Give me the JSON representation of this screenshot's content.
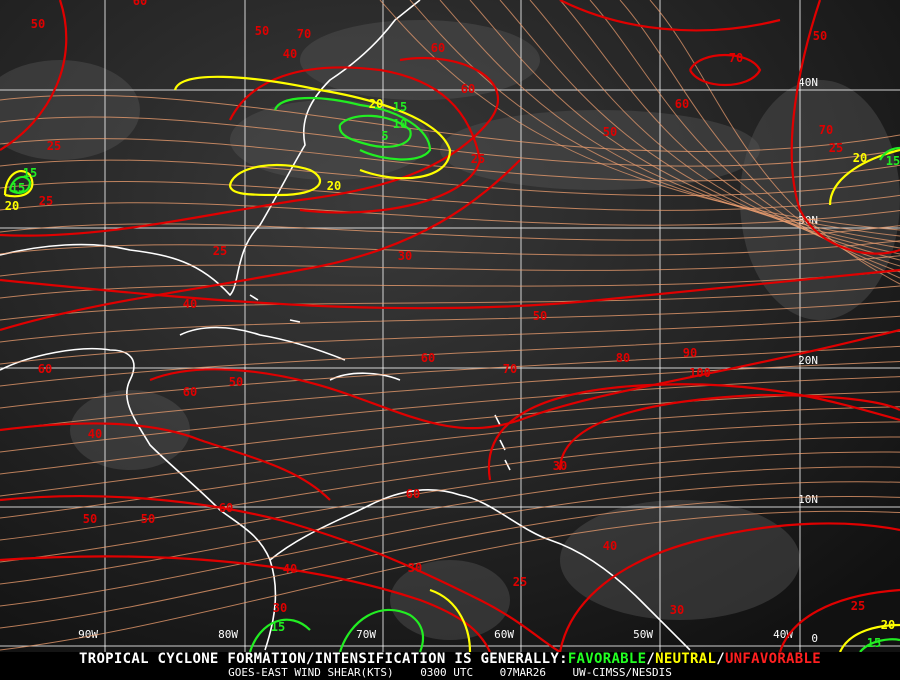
{
  "map": {
    "grid": {
      "longitudes": [
        "90W",
        "80W",
        "70W",
        "60W",
        "50W",
        "40W"
      ],
      "latitudes": [
        "40N",
        "30N",
        "20N",
        "10N",
        "0"
      ]
    },
    "contour_colors": {
      "unfavorable": "#e00000",
      "neutral": "#ffff00",
      "favorable": "#22ee22",
      "streamline": "#f0a070",
      "coast": "#ffffff"
    },
    "contour_labels": [
      {
        "v": "50",
        "c": "unfavorable"
      },
      {
        "v": "60",
        "c": "unfavorable"
      },
      {
        "v": "70",
        "c": "unfavorable"
      },
      {
        "v": "50",
        "c": "unfavorable"
      },
      {
        "v": "60",
        "c": "unfavorable"
      },
      {
        "v": "40",
        "c": "unfavorable"
      },
      {
        "v": "60",
        "c": "unfavorable"
      },
      {
        "v": "50",
        "c": "unfavorable"
      },
      {
        "v": "70",
        "c": "unfavorable"
      },
      {
        "v": "60",
        "c": "unfavorable"
      },
      {
        "v": "50",
        "c": "unfavorable"
      },
      {
        "v": "70",
        "c": "unfavorable"
      },
      {
        "v": "20",
        "c": "neutral"
      },
      {
        "v": "15",
        "c": "favorable"
      },
      {
        "v": "10",
        "c": "favorable"
      },
      {
        "v": "5",
        "c": "favorable"
      },
      {
        "v": "25",
        "c": "unfavorable"
      },
      {
        "v": "20",
        "c": "neutral"
      },
      {
        "v": "25",
        "c": "unfavorable"
      },
      {
        "v": "15",
        "c": "favorable"
      },
      {
        "v": "15",
        "c": "favorable"
      },
      {
        "v": "20",
        "c": "neutral"
      },
      {
        "v": "25",
        "c": "unfavorable"
      },
      {
        "v": "25",
        "c": "unfavorable"
      },
      {
        "v": "30",
        "c": "unfavorable"
      },
      {
        "v": "25",
        "c": "unfavorable"
      },
      {
        "v": "20",
        "c": "neutral"
      },
      {
        "v": "15",
        "c": "favorable"
      },
      {
        "v": "30",
        "c": "unfavorable"
      },
      {
        "v": "40",
        "c": "unfavorable"
      },
      {
        "v": "50",
        "c": "unfavorable"
      },
      {
        "v": "60",
        "c": "unfavorable"
      },
      {
        "v": "50",
        "c": "unfavorable"
      },
      {
        "v": "60",
        "c": "unfavorable"
      },
      {
        "v": "70",
        "c": "unfavorable"
      },
      {
        "v": "60",
        "c": "unfavorable"
      },
      {
        "v": "80",
        "c": "unfavorable"
      },
      {
        "v": "90",
        "c": "unfavorable"
      },
      {
        "v": "100",
        "c": "unfavorable"
      },
      {
        "v": "40",
        "c": "unfavorable"
      },
      {
        "v": "60",
        "c": "unfavorable"
      },
      {
        "v": "50",
        "c": "unfavorable"
      },
      {
        "v": "50",
        "c": "unfavorable"
      },
      {
        "v": "60",
        "c": "unfavorable"
      },
      {
        "v": "40",
        "c": "unfavorable"
      },
      {
        "v": "40",
        "c": "unfavorable"
      },
      {
        "v": "30",
        "c": "unfavorable"
      },
      {
        "v": "30",
        "c": "unfavorable"
      },
      {
        "v": "25",
        "c": "unfavorable"
      },
      {
        "v": "30",
        "c": "unfavorable"
      },
      {
        "v": "25",
        "c": "unfavorable"
      },
      {
        "v": "20",
        "c": "neutral"
      },
      {
        "v": "15",
        "c": "favorable"
      },
      {
        "v": "15",
        "c": "favorable"
      }
    ]
  },
  "caption": {
    "headline": "TROPICAL CYCLONE FORMATION/INTENSIFICATION IS GENERALLY:",
    "favorable": "FAVORABLE",
    "sep1": "/",
    "neutral": "NEUTRAL",
    "sep2": "/",
    "unfavorable": "UNFAVORABLE",
    "product": "GOES-EAST WIND SHEAR(KTS)",
    "time": "0300 UTC",
    "date": "07MAR26",
    "source": "UW-CIMSS/NESDIS"
  }
}
